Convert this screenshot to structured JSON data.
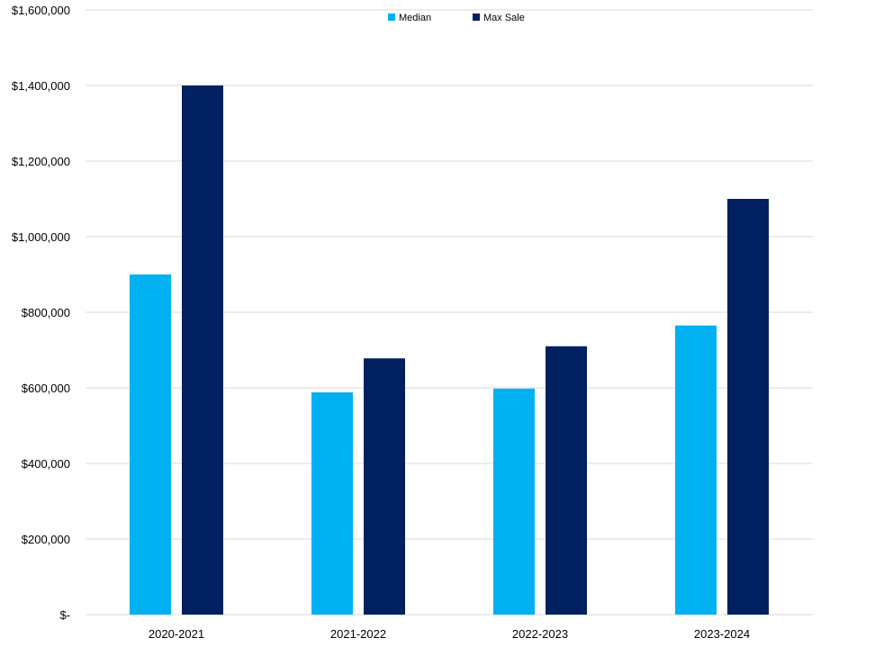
{
  "chart_data": {
    "type": "bar",
    "categories": [
      "2020-2021",
      "2021-2022",
      "2022-2023",
      "2023-2024"
    ],
    "series": [
      {
        "name": "Median",
        "values": [
          900000,
          588000,
          598000,
          765000
        ],
        "color": "#00B0F0"
      },
      {
        "name": "Max Sale",
        "values": [
          1400000,
          678000,
          710000,
          1100000
        ],
        "color": "#002060"
      }
    ],
    "ylim": [
      0,
      1600000
    ],
    "yticks": [
      0,
      200000,
      400000,
      600000,
      800000,
      1000000,
      1200000,
      1400000,
      1600000
    ],
    "ytick_labels": [
      "$-",
      "$200,000",
      "$400,000",
      "$600,000",
      "$800,000",
      "$1,000,000",
      "$1,200,000",
      "$1,400,000",
      "$1,600,000"
    ],
    "title": "",
    "xlabel": "",
    "ylabel": "",
    "grid": true,
    "legend_position": "top-center",
    "gridline_color": "#D9D9D9",
    "text_color": "#000000"
  }
}
